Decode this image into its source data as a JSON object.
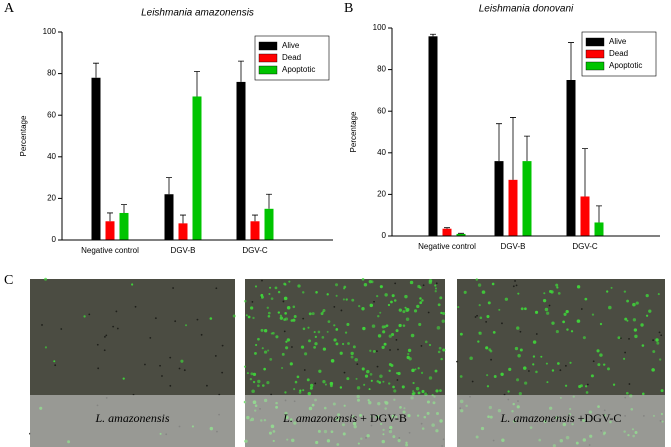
{
  "chart_data": [
    {
      "type": "bar",
      "label": "A",
      "title": "Leishmania amazonensis",
      "y_label": "Percentage",
      "categories": [
        "Negative control",
        "DGV-B",
        "DGV-C"
      ],
      "series": [
        {
          "name": "Alive",
          "color": "#000000",
          "values": [
            78,
            22,
            76
          ],
          "errors": [
            7,
            8,
            10
          ]
        },
        {
          "name": "Dead",
          "color": "#ff0000",
          "values": [
            9,
            8,
            9
          ],
          "errors": [
            4,
            4,
            3
          ]
        },
        {
          "name": "Apoptotic",
          "color": "#00c400",
          "values": [
            13,
            69,
            15
          ],
          "errors": [
            4,
            12,
            7
          ]
        }
      ],
      "ylim": [
        0,
        100
      ],
      "yticks": [
        0,
        20,
        40,
        60,
        80,
        100
      ],
      "legend": "upper right"
    },
    {
      "type": "bar",
      "label": "B",
      "title": "Leishmania donovani",
      "y_label": "Percentage",
      "categories": [
        "Negative control",
        "DGV-B",
        "DGV-C"
      ],
      "series": [
        {
          "name": "Alive",
          "color": "#000000",
          "values": [
            96,
            36,
            75
          ],
          "errors": [
            1,
            18,
            18
          ]
        },
        {
          "name": "Dead",
          "color": "#ff0000",
          "values": [
            3.5,
            27,
            19
          ],
          "errors": [
            0.5,
            30,
            23
          ]
        },
        {
          "name": "Apoptotic",
          "color": "#00c400",
          "values": [
            1,
            36,
            6.5
          ],
          "errors": [
            0.3,
            12,
            8
          ]
        }
      ],
      "ylim": [
        0,
        100
      ],
      "yticks": [
        0,
        20,
        40,
        60,
        80,
        100
      ],
      "legend": "upper right"
    }
  ],
  "panel_c": {
    "label": "C",
    "images": [
      {
        "italic": "L. amazonensis"
      },
      {
        "italic": "L. amazonensis",
        "rest": " + DGV-B"
      },
      {
        "italic": "L. amazonensis",
        "rest": " +DGV-C"
      }
    ]
  }
}
